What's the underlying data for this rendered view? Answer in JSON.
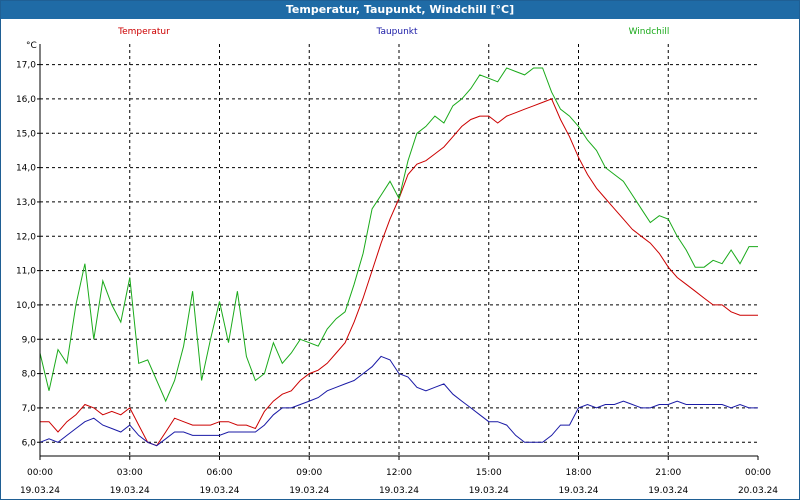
{
  "window": {
    "title": "Temperatur, Taupunkt, Windchill [°C]"
  },
  "chart_data": {
    "type": "line",
    "title": "Temperatur, Taupunkt, Windchill [°C]",
    "ylabel": "°C",
    "ylim": [
      5.6,
      17.6
    ],
    "yticks": [
      "6,0",
      "7,0",
      "8,0",
      "9,0",
      "10,0",
      "11,0",
      "12,0",
      "13,0",
      "14,0",
      "15,0",
      "16,0",
      "17,0"
    ],
    "yticks_values": [
      6,
      7,
      8,
      9,
      10,
      11,
      12,
      13,
      14,
      15,
      16,
      17
    ],
    "xlim": [
      0,
      24
    ],
    "x_ticks": [
      {
        "time": "00:00",
        "date": "19.03.24",
        "hour": 0
      },
      {
        "time": "03:00",
        "date": "19.03.24",
        "hour": 3
      },
      {
        "time": "06:00",
        "date": "19.03.24",
        "hour": 6
      },
      {
        "time": "09:00",
        "date": "19.03.24",
        "hour": 9
      },
      {
        "time": "12:00",
        "date": "19.03.24",
        "hour": 12
      },
      {
        "time": "15:00",
        "date": "19.03.24",
        "hour": 15
      },
      {
        "time": "18:00",
        "date": "19.03.24",
        "hour": 18
      },
      {
        "time": "21:00",
        "date": "19.03.24",
        "hour": 21
      },
      {
        "time": "00:00",
        "date": "20.03.24",
        "hour": 24
      }
    ],
    "grid": true,
    "legend_position": "top",
    "series": [
      {
        "name": "Temperatur",
        "color": "#cc0000",
        "x": [
          0,
          0.3,
          0.6,
          0.9,
          1.2,
          1.5,
          1.8,
          2.1,
          2.4,
          2.7,
          3.0,
          3.3,
          3.6,
          3.9,
          4.2,
          4.5,
          4.8,
          5.1,
          5.4,
          5.7,
          6.0,
          6.3,
          6.6,
          6.9,
          7.2,
          7.5,
          7.8,
          8.1,
          8.4,
          8.7,
          9.0,
          9.3,
          9.6,
          9.9,
          10.2,
          10.5,
          10.8,
          11.1,
          11.4,
          11.7,
          12.0,
          12.3,
          12.6,
          12.9,
          13.2,
          13.5,
          13.8,
          14.1,
          14.4,
          14.7,
          15.0,
          15.3,
          15.6,
          15.9,
          16.2,
          16.5,
          16.8,
          17.1,
          17.4,
          17.7,
          18.0,
          18.3,
          18.6,
          18.9,
          19.2,
          19.5,
          19.8,
          20.1,
          20.4,
          20.7,
          21.0,
          21.3,
          21.6,
          21.9,
          22.2,
          22.5,
          22.8,
          23.1,
          23.4,
          23.7,
          24.0
        ],
        "values": [
          6.6,
          6.6,
          6.3,
          6.6,
          6.8,
          7.1,
          7.0,
          6.8,
          6.9,
          6.8,
          7.0,
          6.5,
          6.0,
          5.9,
          6.3,
          6.7,
          6.6,
          6.5,
          6.5,
          6.5,
          6.6,
          6.6,
          6.5,
          6.5,
          6.4,
          6.9,
          7.2,
          7.4,
          7.5,
          7.8,
          8.0,
          8.1,
          8.3,
          8.6,
          8.9,
          9.5,
          10.2,
          11.0,
          11.8,
          12.5,
          13.1,
          13.8,
          14.1,
          14.2,
          14.4,
          14.6,
          14.9,
          15.2,
          15.4,
          15.5,
          15.5,
          15.3,
          15.5,
          15.6,
          15.7,
          15.8,
          15.9,
          16.0,
          15.4,
          14.9,
          14.3,
          13.8,
          13.4,
          13.1,
          12.8,
          12.5,
          12.2,
          12.0,
          11.8,
          11.5,
          11.1,
          10.8,
          10.6,
          10.4,
          10.2,
          10.0,
          10.0,
          9.8,
          9.7,
          9.7,
          9.7
        ]
      },
      {
        "name": "Taupunkt",
        "color": "#1a1aa6",
        "x": [
          0,
          0.3,
          0.6,
          0.9,
          1.2,
          1.5,
          1.8,
          2.1,
          2.4,
          2.7,
          3.0,
          3.3,
          3.6,
          3.9,
          4.2,
          4.5,
          4.8,
          5.1,
          5.4,
          5.7,
          6.0,
          6.3,
          6.6,
          6.9,
          7.2,
          7.5,
          7.8,
          8.1,
          8.4,
          8.7,
          9.0,
          9.3,
          9.6,
          9.9,
          10.2,
          10.5,
          10.8,
          11.1,
          11.4,
          11.7,
          12.0,
          12.3,
          12.6,
          12.9,
          13.2,
          13.5,
          13.8,
          14.1,
          14.4,
          14.7,
          15.0,
          15.3,
          15.6,
          15.9,
          16.2,
          16.5,
          16.8,
          17.1,
          17.4,
          17.7,
          18.0,
          18.3,
          18.6,
          18.9,
          19.2,
          19.5,
          19.8,
          20.1,
          20.4,
          20.7,
          21.0,
          21.3,
          21.6,
          21.9,
          22.2,
          22.5,
          22.8,
          23.1,
          23.4,
          23.7,
          24.0
        ],
        "values": [
          6.0,
          6.1,
          6.0,
          6.2,
          6.4,
          6.6,
          6.7,
          6.5,
          6.4,
          6.3,
          6.5,
          6.2,
          6.0,
          5.9,
          6.1,
          6.3,
          6.3,
          6.2,
          6.2,
          6.2,
          6.2,
          6.3,
          6.3,
          6.3,
          6.3,
          6.5,
          6.8,
          7.0,
          7.0,
          7.1,
          7.2,
          7.3,
          7.5,
          7.6,
          7.7,
          7.8,
          8.0,
          8.2,
          8.5,
          8.4,
          8.0,
          7.9,
          7.6,
          7.5,
          7.6,
          7.7,
          7.4,
          7.2,
          7.0,
          6.8,
          6.6,
          6.6,
          6.5,
          6.2,
          6.0,
          6.0,
          6.0,
          6.2,
          6.5,
          6.5,
          7.0,
          7.1,
          7.0,
          7.1,
          7.1,
          7.2,
          7.1,
          7.0,
          7.0,
          7.1,
          7.1,
          7.2,
          7.1,
          7.1,
          7.1,
          7.1,
          7.1,
          7.0,
          7.1,
          7.0,
          7.0
        ]
      },
      {
        "name": "Windchill",
        "color": "#1aaa1a",
        "x": [
          0,
          0.3,
          0.6,
          0.9,
          1.2,
          1.5,
          1.8,
          2.1,
          2.4,
          2.7,
          3.0,
          3.3,
          3.6,
          3.9,
          4.2,
          4.5,
          4.8,
          5.1,
          5.4,
          5.7,
          6.0,
          6.3,
          6.6,
          6.9,
          7.2,
          7.5,
          7.8,
          8.1,
          8.4,
          8.7,
          9.0,
          9.3,
          9.6,
          9.9,
          10.2,
          10.5,
          10.8,
          11.1,
          11.4,
          11.7,
          12.0,
          12.3,
          12.6,
          12.9,
          13.2,
          13.5,
          13.8,
          14.1,
          14.4,
          14.7,
          15.0,
          15.3,
          15.6,
          15.9,
          16.2,
          16.5,
          16.8,
          17.1,
          17.4,
          17.7,
          18.0,
          18.3,
          18.6,
          18.9,
          19.2,
          19.5,
          19.8,
          20.1,
          20.4,
          20.7,
          21.0,
          21.3,
          21.6,
          21.9,
          22.2,
          22.5,
          22.8,
          23.1,
          23.4,
          23.7,
          24.0
        ],
        "values": [
          8.6,
          7.5,
          8.7,
          8.3,
          10.0,
          11.2,
          9.0,
          10.7,
          10.0,
          9.5,
          10.8,
          8.3,
          8.4,
          7.8,
          7.2,
          7.8,
          8.8,
          10.4,
          7.8,
          9.0,
          10.1,
          8.9,
          10.4,
          8.5,
          7.8,
          8.0,
          8.9,
          8.3,
          8.6,
          9.0,
          8.9,
          8.8,
          9.3,
          9.6,
          9.8,
          10.6,
          11.5,
          12.8,
          13.2,
          13.6,
          13.1,
          14.2,
          15.0,
          15.2,
          15.5,
          15.3,
          15.8,
          16.0,
          16.3,
          16.7,
          16.6,
          16.5,
          16.9,
          16.8,
          16.7,
          16.9,
          16.9,
          16.2,
          15.7,
          15.5,
          15.2,
          14.8,
          14.5,
          14.0,
          13.8,
          13.6,
          13.2,
          12.8,
          12.4,
          12.6,
          12.5,
          12.0,
          11.6,
          11.1,
          11.1,
          11.3,
          11.2,
          11.6,
          11.2,
          11.7,
          11.7
        ]
      }
    ]
  }
}
